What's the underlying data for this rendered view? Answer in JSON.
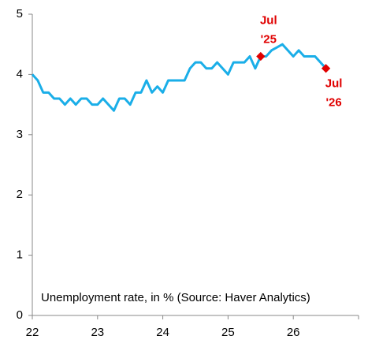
{
  "chart_data": {
    "type": "line",
    "note": "Unemployment rate, in % (Source: Haver Analytics)",
    "categories": [
      "22",
      null,
      null,
      null,
      null,
      null,
      null,
      null,
      null,
      null,
      null,
      null,
      "23",
      null,
      null,
      null,
      null,
      null,
      null,
      null,
      null,
      null,
      null,
      null,
      "24",
      null,
      null,
      null,
      null,
      null,
      null,
      null,
      null,
      null,
      null,
      null,
      "25",
      null,
      null,
      null,
      null,
      null,
      null,
      null,
      null,
      null,
      null,
      null,
      "26",
      null,
      null,
      null,
      null,
      null,
      null
    ],
    "series": [
      {
        "color": "#1aaee8",
        "values": [
          4.0,
          3.9,
          3.7,
          3.7,
          3.6,
          3.6,
          3.5,
          3.6,
          3.5,
          3.6,
          3.6,
          3.5,
          3.5,
          3.6,
          3.5,
          3.4,
          3.6,
          3.6,
          3.5,
          3.7,
          3.7,
          3.9,
          3.7,
          3.8,
          3.7,
          3.9,
          3.9,
          3.9,
          3.9,
          4.1,
          4.2,
          4.2,
          4.1,
          4.1,
          4.2,
          4.1,
          4.0,
          4.2,
          4.2,
          4.2,
          4.3,
          4.1,
          4.3,
          4.3,
          4.4,
          4.45,
          4.5,
          4.4,
          4.3,
          4.4,
          4.3,
          4.3,
          4.3,
          4.2,
          4.1
        ]
      }
    ],
    "highlights": [
      {
        "at": 42,
        "lines": [
          "Jul",
          "'25"
        ],
        "color": "#e00000"
      },
      {
        "at": 54,
        "lines": [
          "Jul",
          "'26"
        ],
        "color": "#e00000"
      }
    ],
    "ylim": [
      0,
      5
    ],
    "yticks": [
      0,
      1,
      2,
      3,
      4,
      5
    ],
    "grid": false
  }
}
